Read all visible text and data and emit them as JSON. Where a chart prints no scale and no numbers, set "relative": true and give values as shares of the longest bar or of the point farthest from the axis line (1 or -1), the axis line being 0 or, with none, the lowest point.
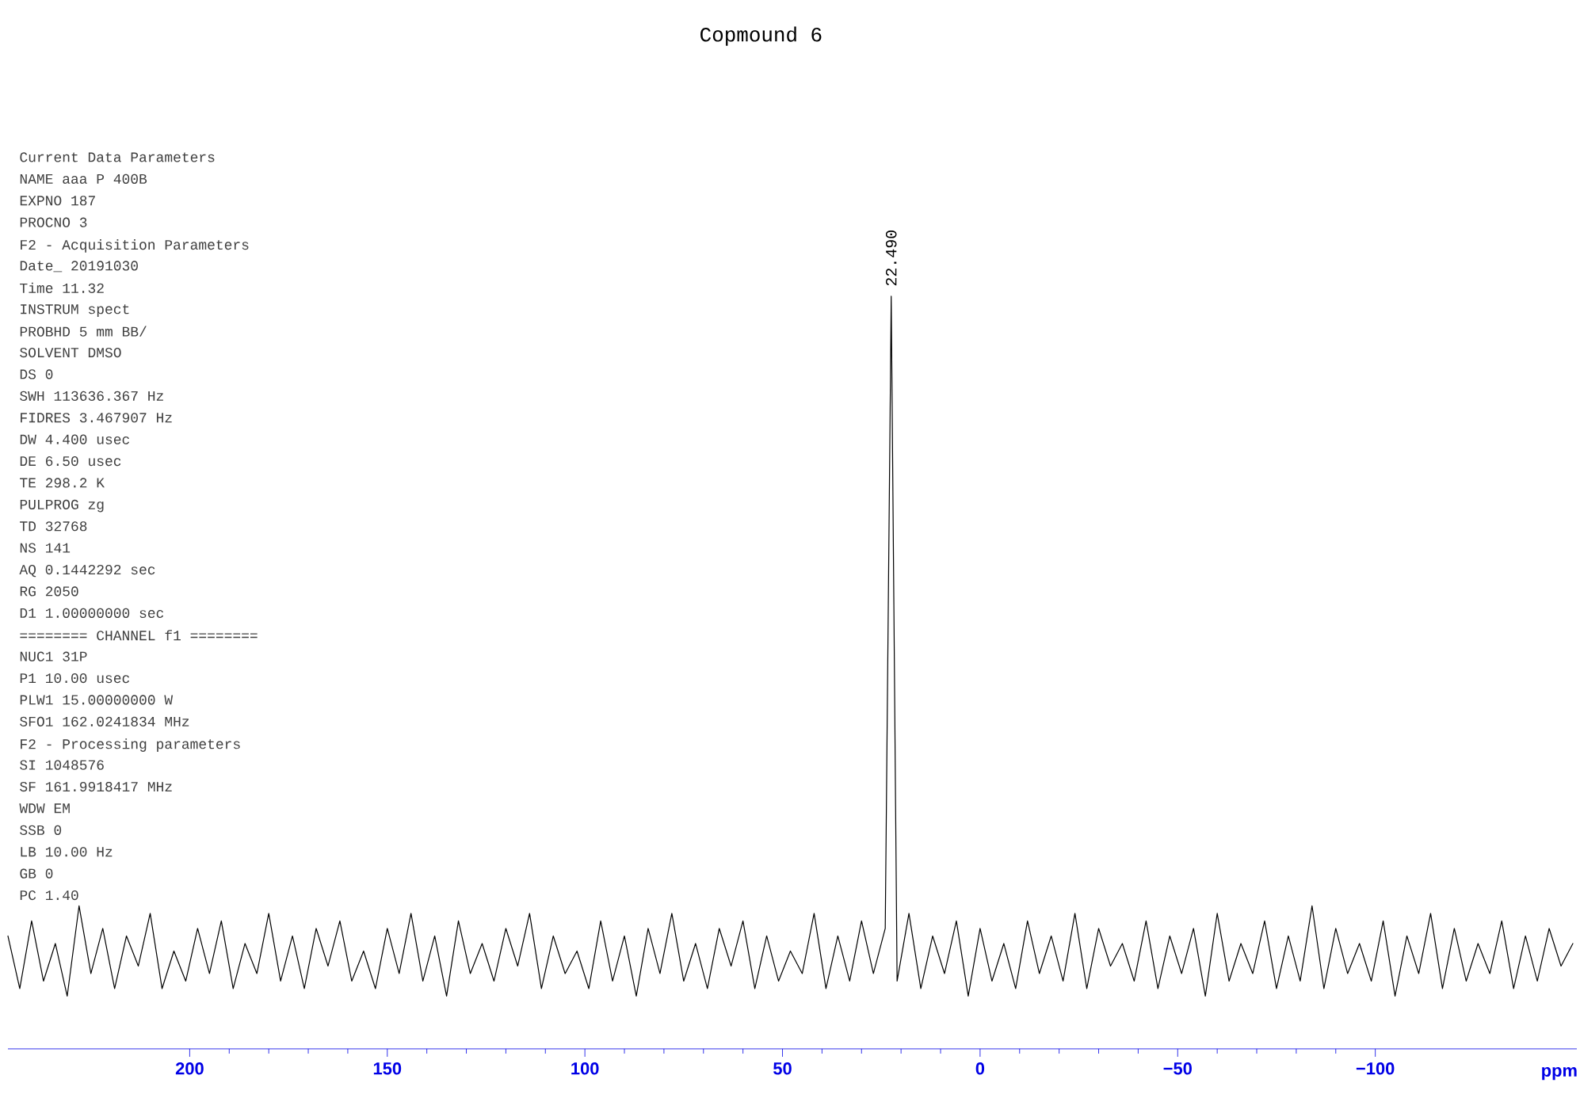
{
  "chart_data": {
    "type": "line",
    "title": "Copmound 6",
    "xlabel": "ppm",
    "relative": true,
    "xlim": [
      246,
      -151
    ],
    "xticks": [
      200,
      150,
      100,
      50,
      0,
      {
        "value": -50,
        "label": "−50"
      },
      {
        "value": -100,
        "label": "−100"
      }
    ],
    "series": [
      {
        "color": "#000000",
        "x": [
          246,
          243,
          240,
          237,
          234,
          231,
          228,
          225,
          222,
          219,
          216,
          213,
          210,
          207,
          204,
          201,
          198,
          195,
          192,
          189,
          186,
          183,
          180,
          177,
          174,
          171,
          168,
          165,
          162,
          159,
          156,
          153,
          150,
          147,
          144,
          141,
          138,
          135,
          132,
          129,
          126,
          123,
          120,
          117,
          114,
          111,
          108,
          105,
          102,
          99,
          96,
          93,
          90,
          87,
          84,
          81,
          78,
          75,
          72,
          69,
          66,
          63,
          60,
          57,
          54,
          51,
          48,
          45,
          42,
          39,
          36,
          33,
          30,
          27,
          24,
          22.49,
          21,
          18,
          15,
          12,
          9,
          6,
          3,
          0,
          -3,
          -6,
          -9,
          -12,
          -15,
          -18,
          -21,
          -24,
          -27,
          -30,
          -33,
          -36,
          -39,
          -42,
          -45,
          -48,
          -51,
          -54,
          -57,
          -60,
          -63,
          -66,
          -69,
          -72,
          -75,
          -78,
          -81,
          -84,
          -87,
          -90,
          -93,
          -96,
          -99,
          -102,
          -105,
          -108,
          -111,
          -114,
          -117,
          -120,
          -123,
          -126,
          -129,
          -132,
          -135,
          -138,
          -141,
          -144,
          -147,
          -150
        ],
        "values": [
          0.15,
          0.08,
          0.17,
          0.09,
          0.14,
          0.07,
          0.19,
          0.1,
          0.16,
          0.08,
          0.15,
          0.11,
          0.18,
          0.08,
          0.13,
          0.09,
          0.16,
          0.1,
          0.17,
          0.08,
          0.14,
          0.1,
          0.18,
          0.09,
          0.15,
          0.08,
          0.16,
          0.11,
          0.17,
          0.09,
          0.13,
          0.08,
          0.16,
          0.1,
          0.18,
          0.09,
          0.15,
          0.07,
          0.17,
          0.1,
          0.14,
          0.09,
          0.16,
          0.11,
          0.18,
          0.08,
          0.15,
          0.1,
          0.13,
          0.08,
          0.17,
          0.09,
          0.15,
          0.07,
          0.16,
          0.1,
          0.18,
          0.09,
          0.14,
          0.08,
          0.16,
          0.11,
          0.17,
          0.08,
          0.15,
          0.09,
          0.13,
          0.1,
          0.18,
          0.08,
          0.15,
          0.09,
          0.17,
          0.1,
          0.16,
          1.0,
          0.09,
          0.18,
          0.08,
          0.15,
          0.1,
          0.17,
          0.07,
          0.16,
          0.09,
          0.14,
          0.08,
          0.17,
          0.1,
          0.15,
          0.09,
          0.18,
          0.08,
          0.16,
          0.11,
          0.14,
          0.09,
          0.17,
          0.08,
          0.15,
          0.1,
          0.16,
          0.07,
          0.18,
          0.09,
          0.14,
          0.1,
          0.17,
          0.08,
          0.15,
          0.09,
          0.19,
          0.08,
          0.16,
          0.1,
          0.14,
          0.09,
          0.17,
          0.07,
          0.15,
          0.1,
          0.18,
          0.08,
          0.16,
          0.09,
          0.14,
          0.1,
          0.17,
          0.08,
          0.15,
          0.09,
          0.16,
          0.11,
          0.14
        ]
      }
    ],
    "annotations": [
      {
        "text": "22.490",
        "x": 22.49,
        "y": 1.0
      },
      "Current Data Parameters",
      "NAME aaa P 400B",
      "EXPNO 187",
      "PROCNO 3",
      "F2 - Acquisition Parameters",
      "Date_ 20191030",
      "Time 11.32",
      "INSTRUM spect",
      "PROBHD 5 mm BB/",
      "SOLVENT DMSO",
      "DS 0",
      "SWH 113636.367 Hz",
      "FIDRES 3.467907 Hz",
      "DW 4.400 usec",
      "DE 6.50 usec",
      "TE 298.2 K",
      "PULPROG zg",
      "TD 32768",
      "NS 141",
      "AQ 0.1442292 sec",
      "RG 2050",
      "D1 1.00000000 sec",
      "======== CHANNEL f1 ========",
      "NUC1 31P",
      "P1 10.00 usec",
      "PLW1 15.00000000 W",
      "SFO1 162.0241834 MHz",
      "F2 - Processing parameters",
      "SI 1048576",
      "SF 161.9918417 MHz",
      "WDW EM",
      "SSB 0",
      "LB 10.00 Hz",
      "GB 0",
      "PC 1.40"
    ]
  }
}
